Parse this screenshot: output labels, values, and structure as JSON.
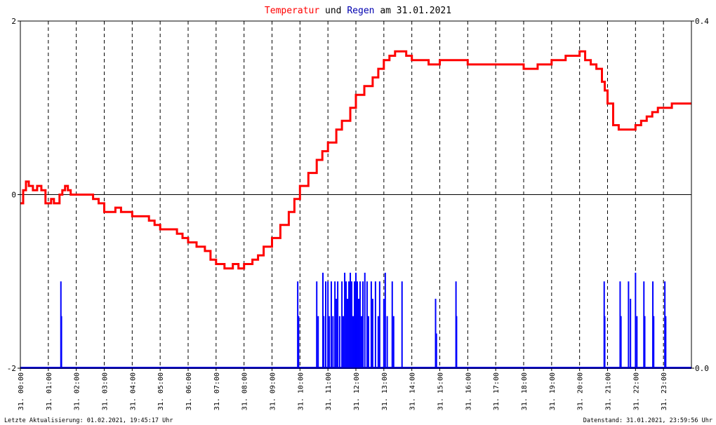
{
  "title": {
    "temp_word": "Temperatur",
    "und": "und",
    "rain_word": "Regen",
    "am": "am",
    "date": "31.01.2021"
  },
  "footer": {
    "left": "Letzte Aktualisierung: 01.02.2021, 19:45:17 Uhr",
    "right": "Datenstand: 31.01.2021, 23:59:56 Uhr"
  },
  "colors": {
    "temperature": "#ff0000",
    "rain": "#0000ff",
    "title_temp": "#ff0000",
    "title_rain": "#0000b0",
    "grid": "#000000",
    "zero_line": "#000000"
  },
  "chart_data": {
    "type": "line",
    "x_unit": "hour of day",
    "xlim": [
      0,
      24
    ],
    "left_axis": {
      "ylim": [
        -2,
        2
      ],
      "ticks": [
        "-2",
        "0",
        "2"
      ]
    },
    "right_axis": {
      "ylim": [
        0,
        0.4
      ],
      "ticks": [
        "0.0",
        "0.4"
      ]
    },
    "x_tick_labels": [
      "31. 00:00",
      "31. 01:00",
      "31. 02:00",
      "31. 03:00",
      "31. 04:00",
      "31. 05:00",
      "31. 06:00",
      "31. 07:00",
      "31. 08:00",
      "31. 09:00",
      "31. 10:00",
      "31. 11:00",
      "31. 12:00",
      "31. 13:00",
      "31. 14:00",
      "31. 15:00",
      "31. 16:00",
      "31. 17:00",
      "31. 18:00",
      "31. 19:00",
      "31. 20:00",
      "31. 21:00",
      "31. 22:00",
      "31. 23:00"
    ],
    "grid": "vertical dashed at each hour",
    "series": [
      {
        "name": "Temperatur",
        "axis": "left",
        "style": "line",
        "x": [
          0.0,
          0.1,
          0.2,
          0.3,
          0.45,
          0.6,
          0.75,
          0.9,
          1.0,
          1.1,
          1.2,
          1.4,
          1.5,
          1.6,
          1.7,
          1.8,
          2.0,
          2.3,
          2.6,
          2.8,
          3.0,
          3.2,
          3.4,
          3.6,
          3.8,
          4.0,
          4.3,
          4.6,
          4.8,
          5.0,
          5.3,
          5.6,
          5.8,
          6.0,
          6.3,
          6.6,
          6.8,
          7.0,
          7.3,
          7.6,
          7.8,
          8.0,
          8.3,
          8.5,
          8.7,
          9.0,
          9.3,
          9.6,
          9.8,
          10.0,
          10.3,
          10.6,
          10.8,
          11.0,
          11.3,
          11.5,
          11.8,
          12.0,
          12.3,
          12.6,
          12.8,
          13.0,
          13.2,
          13.4,
          13.6,
          13.8,
          14.0,
          14.3,
          14.6,
          14.8,
          15.0,
          15.5,
          16.0,
          16.5,
          17.0,
          17.5,
          18.0,
          18.5,
          19.0,
          19.5,
          19.8,
          20.0,
          20.2,
          20.4,
          20.6,
          20.8,
          20.9,
          21.0,
          21.2,
          21.4,
          21.6,
          21.8,
          22.0,
          22.2,
          22.4,
          22.6,
          22.8,
          23.0,
          23.3,
          23.6,
          23.99
        ],
        "values": [
          -0.1,
          0.05,
          0.15,
          0.1,
          0.05,
          0.1,
          0.05,
          -0.1,
          -0.1,
          -0.05,
          -0.1,
          0.0,
          0.05,
          0.1,
          0.05,
          0.0,
          0.0,
          0.0,
          -0.05,
          -0.1,
          -0.2,
          -0.2,
          -0.15,
          -0.2,
          -0.2,
          -0.25,
          -0.25,
          -0.3,
          -0.35,
          -0.4,
          -0.4,
          -0.45,
          -0.5,
          -0.55,
          -0.6,
          -0.65,
          -0.75,
          -0.8,
          -0.85,
          -0.8,
          -0.85,
          -0.8,
          -0.75,
          -0.7,
          -0.6,
          -0.5,
          -0.35,
          -0.2,
          -0.05,
          0.1,
          0.25,
          0.4,
          0.5,
          0.6,
          0.75,
          0.85,
          1.0,
          1.15,
          1.25,
          1.35,
          1.45,
          1.55,
          1.6,
          1.65,
          1.65,
          1.6,
          1.55,
          1.55,
          1.5,
          1.5,
          1.55,
          1.55,
          1.5,
          1.5,
          1.5,
          1.5,
          1.45,
          1.5,
          1.55,
          1.6,
          1.6,
          1.65,
          1.55,
          1.5,
          1.45,
          1.3,
          1.2,
          1.05,
          0.8,
          0.75,
          0.75,
          0.75,
          0.8,
          0.85,
          0.9,
          0.95,
          1.0,
          1.0,
          1.05,
          1.05,
          1.05
        ]
      },
      {
        "name": "Regen",
        "axis": "right",
        "style": "bar",
        "x": [
          1.45,
          1.47,
          9.92,
          9.95,
          10.6,
          10.65,
          10.82,
          10.85,
          10.92,
          11.0,
          11.05,
          11.12,
          11.18,
          11.25,
          11.3,
          11.35,
          11.42,
          11.5,
          11.55,
          11.6,
          11.65,
          11.7,
          11.75,
          11.8,
          11.85,
          11.9,
          11.95,
          12.0,
          12.05,
          12.1,
          12.15,
          12.2,
          12.25,
          12.32,
          12.4,
          12.45,
          12.55,
          12.6,
          12.7,
          12.8,
          12.85,
          13.0,
          13.05,
          13.12,
          13.3,
          13.35,
          13.65,
          14.85,
          14.88,
          15.58,
          15.6,
          20.88,
          20.9,
          21.45,
          21.48,
          21.75,
          21.82,
          22.0,
          22.05,
          22.3,
          22.33,
          22.62,
          22.65,
          23.05,
          23.08
        ],
        "values": [
          0.1,
          0.06,
          0.1,
          0.06,
          0.1,
          0.06,
          0.11,
          0.06,
          0.1,
          0.1,
          0.06,
          0.1,
          0.06,
          0.1,
          0.08,
          0.1,
          0.06,
          0.1,
          0.06,
          0.11,
          0.1,
          0.08,
          0.1,
          0.11,
          0.1,
          0.06,
          0.1,
          0.11,
          0.1,
          0.08,
          0.1,
          0.06,
          0.1,
          0.11,
          0.1,
          0.06,
          0.1,
          0.08,
          0.1,
          0.06,
          0.1,
          0.08,
          0.11,
          0.06,
          0.1,
          0.06,
          0.1,
          0.08,
          0.04,
          0.1,
          0.06,
          0.1,
          0.06,
          0.1,
          0.06,
          0.1,
          0.08,
          0.11,
          0.06,
          0.1,
          0.06,
          0.1,
          0.06,
          0.1,
          0.06
        ]
      }
    ]
  }
}
